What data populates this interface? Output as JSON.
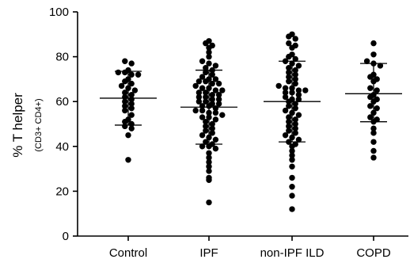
{
  "chart_data": {
    "type": "scatter",
    "title": "",
    "ylabel": "% T helper",
    "ylabel_sub": "(CD3+ CD4+)",
    "ylim": [
      0,
      100
    ],
    "yticks": [
      0,
      20,
      40,
      60,
      80,
      100
    ],
    "categories": [
      "Control",
      "IPF",
      "non-IPF ILD",
      "COPD"
    ],
    "groups": [
      {
        "name": "Control",
        "mean": 61.5,
        "sd_low": 49.5,
        "sd_high": 73.5,
        "values": [
          78,
          77,
          74,
          73,
          73,
          72,
          72,
          70,
          69,
          68,
          67,
          66,
          65,
          64,
          63,
          62,
          61,
          60,
          59,
          58,
          57,
          56,
          54,
          52,
          51,
          50,
          49,
          48,
          45,
          34
        ]
      },
      {
        "name": "IPF",
        "mean": 57.5,
        "sd_low": 41,
        "sd_high": 74,
        "values": [
          87,
          86,
          85,
          84,
          82,
          80,
          78,
          77,
          76,
          75,
          74,
          73,
          72,
          71,
          70,
          70,
          69,
          69,
          68,
          68,
          67,
          66,
          66,
          65,
          65,
          64,
          64,
          63,
          63,
          62,
          62,
          61,
          61,
          60,
          60,
          59,
          59,
          58,
          58,
          57,
          56,
          56,
          55,
          55,
          54,
          53,
          53,
          52,
          51,
          50,
          49,
          48,
          47,
          46,
          45,
          44,
          43,
          42,
          41,
          40,
          40,
          39,
          37,
          35,
          33,
          31,
          29,
          26,
          25,
          15
        ]
      },
      {
        "name": "non-IPF ILD",
        "mean": 60,
        "sd_low": 42,
        "sd_high": 78,
        "values": [
          90,
          89,
          88,
          86,
          85,
          84,
          81,
          80,
          79,
          78,
          77,
          76,
          75,
          74,
          73,
          72,
          71,
          70,
          69,
          68,
          67,
          66,
          66,
          65,
          65,
          64,
          64,
          63,
          62,
          61,
          61,
          60,
          59,
          58,
          57,
          56,
          55,
          54,
          53,
          52,
          51,
          50,
          49,
          48,
          47,
          46,
          45,
          44,
          43,
          42,
          41,
          40,
          38,
          36,
          34,
          31,
          26,
          22,
          18,
          12
        ]
      },
      {
        "name": "COPD",
        "mean": 63.5,
        "sd_low": 51,
        "sd_high": 77,
        "values": [
          86,
          81,
          78,
          77,
          76,
          72,
          71,
          70,
          69,
          66,
          65,
          63,
          62,
          61,
          60,
          58,
          57,
          55,
          53,
          52,
          51,
          48,
          46,
          42,
          38,
          35
        ]
      }
    ]
  }
}
